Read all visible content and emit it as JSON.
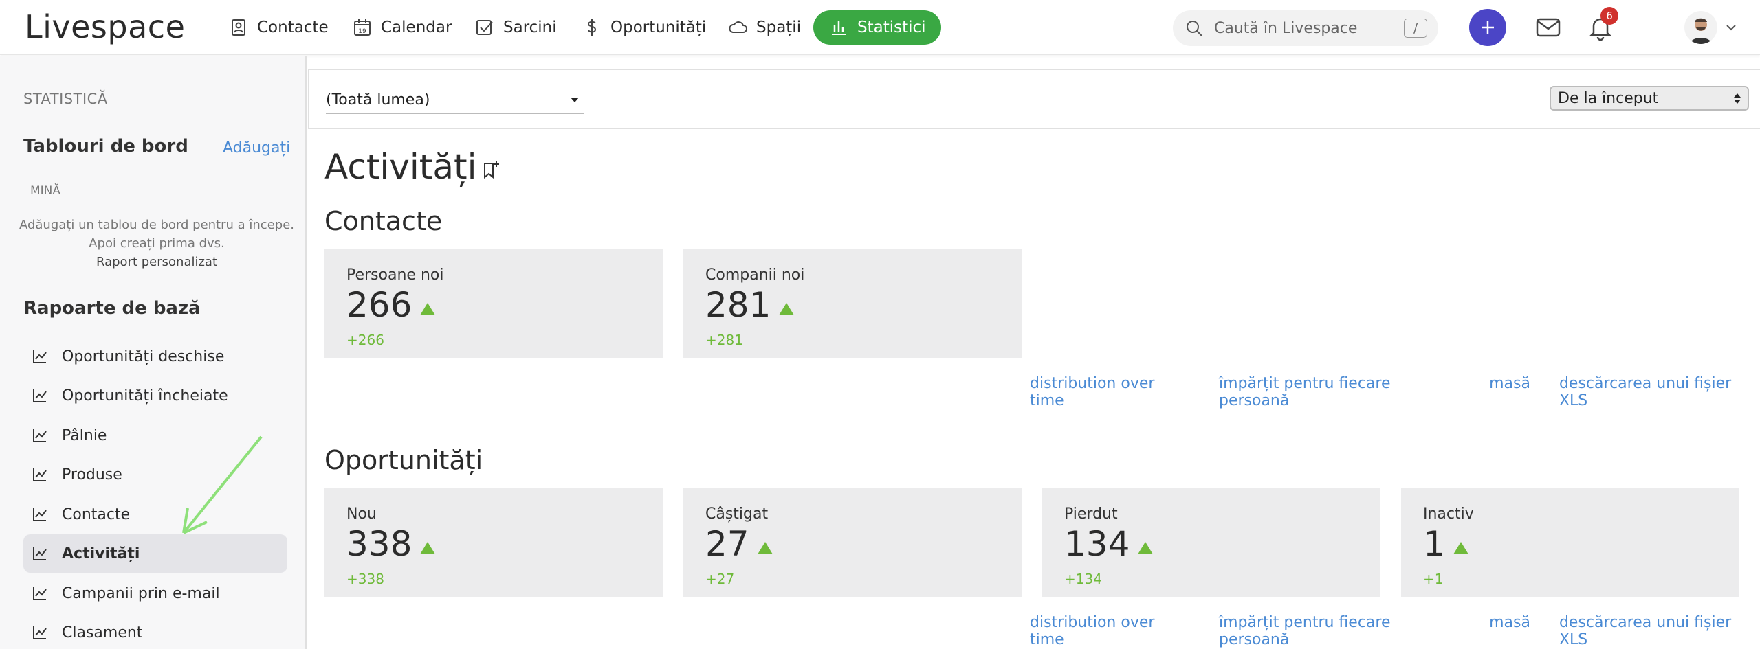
{
  "app": {
    "logo": "Livespace",
    "nav": [
      {
        "label": "Contacte",
        "icon": "contact-icon"
      },
      {
        "label": "Calendar",
        "icon": "calendar-icon"
      },
      {
        "label": "Sarcini",
        "icon": "checkbox-icon"
      },
      {
        "label": "Oportunități",
        "icon": "dollar-icon"
      },
      {
        "label": "Spații",
        "icon": "cloud-icon"
      },
      {
        "label": "Statistici",
        "icon": "bar-chart-icon",
        "active": true
      }
    ],
    "search": {
      "placeholder": "Caută în Livespace",
      "shortcut": "/"
    },
    "notifications_count": "6",
    "accent_color": "#3aa843"
  },
  "sidebar": {
    "header": "STATISTICĂ",
    "dashboards_title": "Tablouri de bord",
    "add_label": "Adăugați",
    "mine_label": "MINĂ",
    "hint_line1": "Adăugați un tablou de bord pentru a începe.",
    "hint_line2": "Apoi creați prima dvs.",
    "hint_line3": "Raport personalizat",
    "base_reports_title": "Rapoarte de bază",
    "items": [
      {
        "label": "Oportunități deschise"
      },
      {
        "label": "Oportunități încheiate"
      },
      {
        "label": "Pâlnie"
      },
      {
        "label": "Produse"
      },
      {
        "label": "Contacte"
      },
      {
        "label": "Activități",
        "active": true
      },
      {
        "label": "Campanii prin e-mail"
      },
      {
        "label": "Clasament"
      }
    ]
  },
  "filters": {
    "people": "(Toată lumea)",
    "range": "De la început"
  },
  "main": {
    "title": "Activități",
    "sections": [
      {
        "title": "Contacte",
        "cards": [
          {
            "label": "Persoane noi",
            "value": "266",
            "delta": "+266"
          },
          {
            "label": "Companii noi",
            "value": "281",
            "delta": "+281"
          }
        ]
      },
      {
        "title": "Oportunități",
        "cards": [
          {
            "label": "Nou",
            "value": "338",
            "delta": "+338"
          },
          {
            "label": "Câștigat",
            "value": "27",
            "delta": "+27"
          },
          {
            "label": "Pierdut",
            "value": "134",
            "delta": "+134"
          },
          {
            "label": "Inactiv",
            "value": "1",
            "delta": "+1"
          }
        ]
      }
    ],
    "links": [
      "distribution over time",
      "împărțit pentru fiecare persoană",
      "masă",
      "descărcarea unui fișier XLS"
    ]
  }
}
